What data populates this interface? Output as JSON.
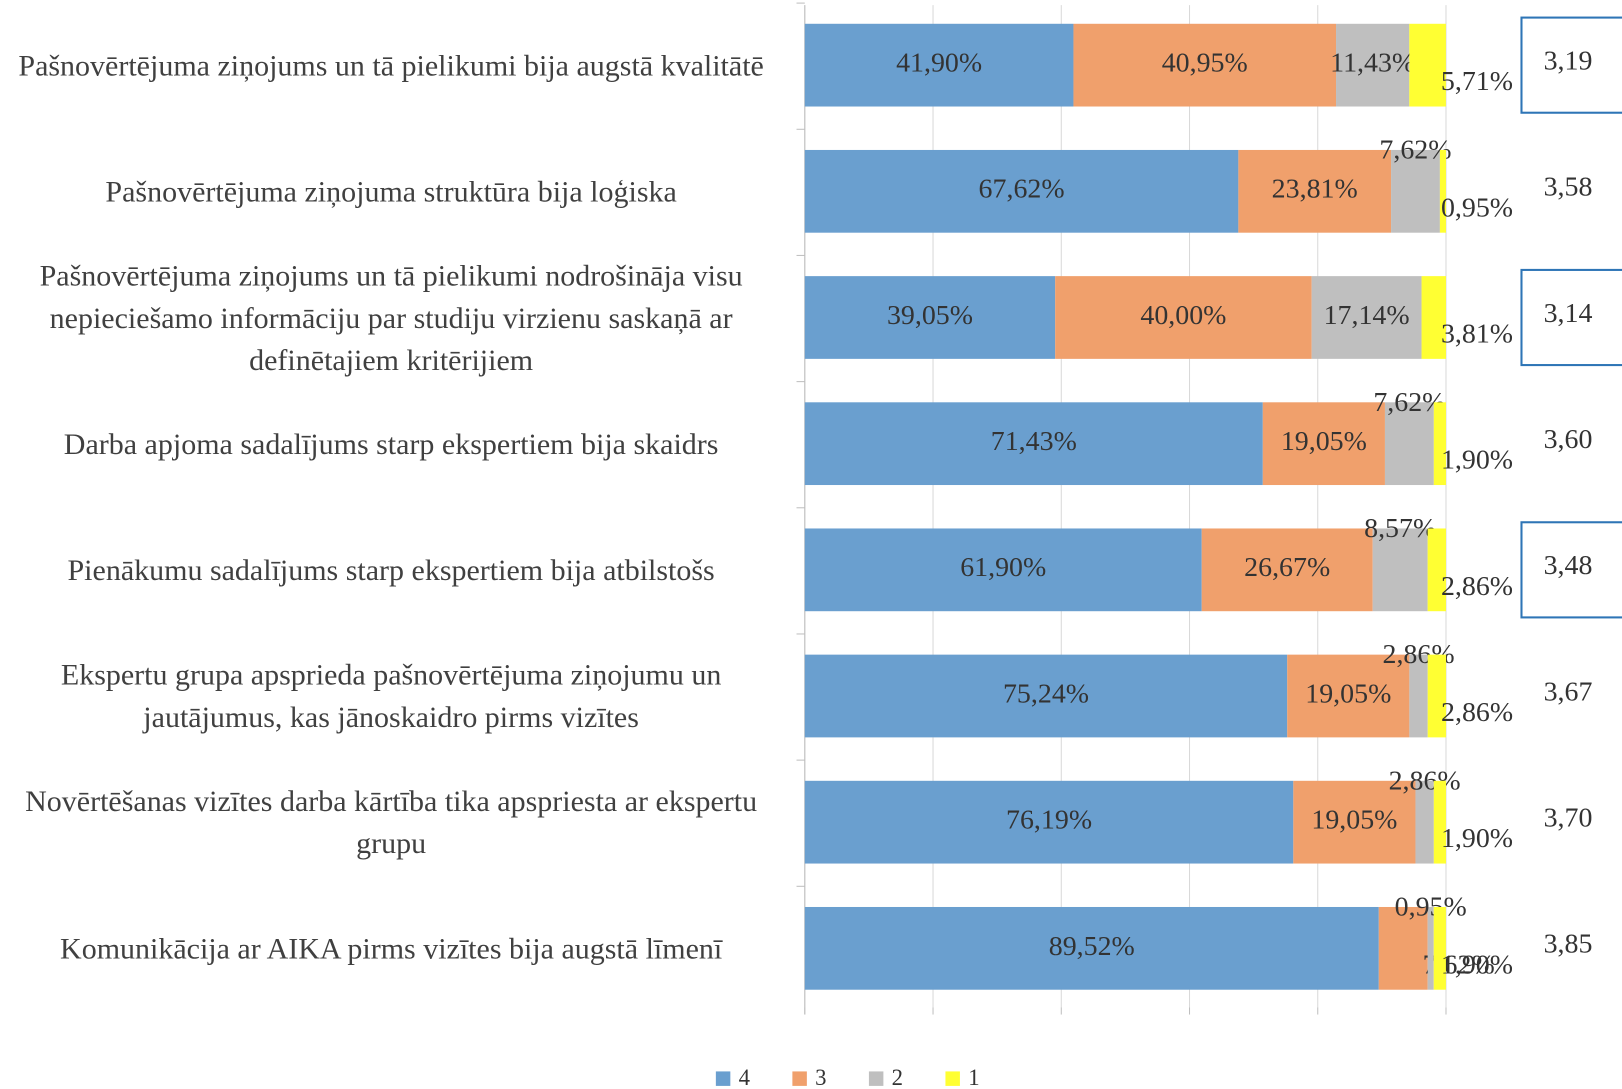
{
  "chart_data": {
    "type": "stacked_barh",
    "categories": [
      "Pašnovērtējuma ziņojums un tā pielikumi bija augstā kvalitātē",
      "Pašnovērtējuma ziņojuma struktūra bija loģiska",
      "Pašnovērtējuma ziņojums un tā pielikumi nodrošināja visu nepieciešamo informāciju par studiju virzienu saskaņā ar definētajiem kritērijiem",
      "Darba apjoma sadalījums starp ekspertiem bija skaidrs",
      "Pienākumu sadalījums starp ekspertiem bija atbilstošs",
      "Ekspertu grupa apsprieda pašnovērtējuma ziņojumu un jautājumus, kas jānoskaidro pirms vizītes",
      "Novērtēšanas vizītes darba kārtība tika apspriesta ar ekspertu grupu",
      "Komunikācija ar AIKA pirms vizītes bija augstā līmenī"
    ],
    "series": [
      {
        "name": "4",
        "color": "#6a9fcf",
        "values": [
          41.9,
          67.62,
          39.05,
          71.43,
          61.9,
          75.24,
          76.19,
          89.52
        ],
        "value_labels": [
          "41,90%",
          "67,62%",
          "39,05%",
          "71,43%",
          "61,90%",
          "75,24%",
          "76,19%",
          "89,52%"
        ]
      },
      {
        "name": "3",
        "color": "#f0a06c",
        "values": [
          40.95,
          23.81,
          40.0,
          19.05,
          26.67,
          19.05,
          19.05,
          7.62
        ],
        "value_labels": [
          "40,95%",
          "23,81%",
          "40,00%",
          "19,05%",
          "26,67%",
          "19,05%",
          "19,05%",
          "7,62%"
        ]
      },
      {
        "name": "2",
        "color": "#bfbfbf",
        "values": [
          11.43,
          7.62,
          17.14,
          7.62,
          8.57,
          2.86,
          2.86,
          0.95
        ],
        "value_labels": [
          "11,43%",
          "7,62%",
          "17,14%",
          "7,62%",
          "8,57%",
          "2,86%",
          "2,86%",
          "0,95%"
        ]
      },
      {
        "name": "1",
        "color": "#ffff33",
        "values": [
          5.71,
          0.95,
          3.81,
          1.9,
          2.86,
          2.86,
          1.9,
          1.9
        ],
        "value_labels": [
          "5,71%",
          "0,95%",
          "3,81%",
          "1,90%",
          "2,86%",
          "2,86%",
          "1,90%",
          "1,90%"
        ]
      }
    ],
    "mean_labels": [
      "3,19",
      "3,58",
      "3,14",
      "3,60",
      "3,48",
      "3,67",
      "3,70",
      "3,85"
    ],
    "mean_boxed": [
      true,
      false,
      true,
      false,
      true,
      false,
      false,
      false
    ],
    "box_color": "#2e75b6",
    "xlim": [
      0,
      100
    ],
    "xticks": [
      0,
      20,
      40,
      60,
      80,
      100
    ],
    "grid": true,
    "legend": "bottom"
  }
}
